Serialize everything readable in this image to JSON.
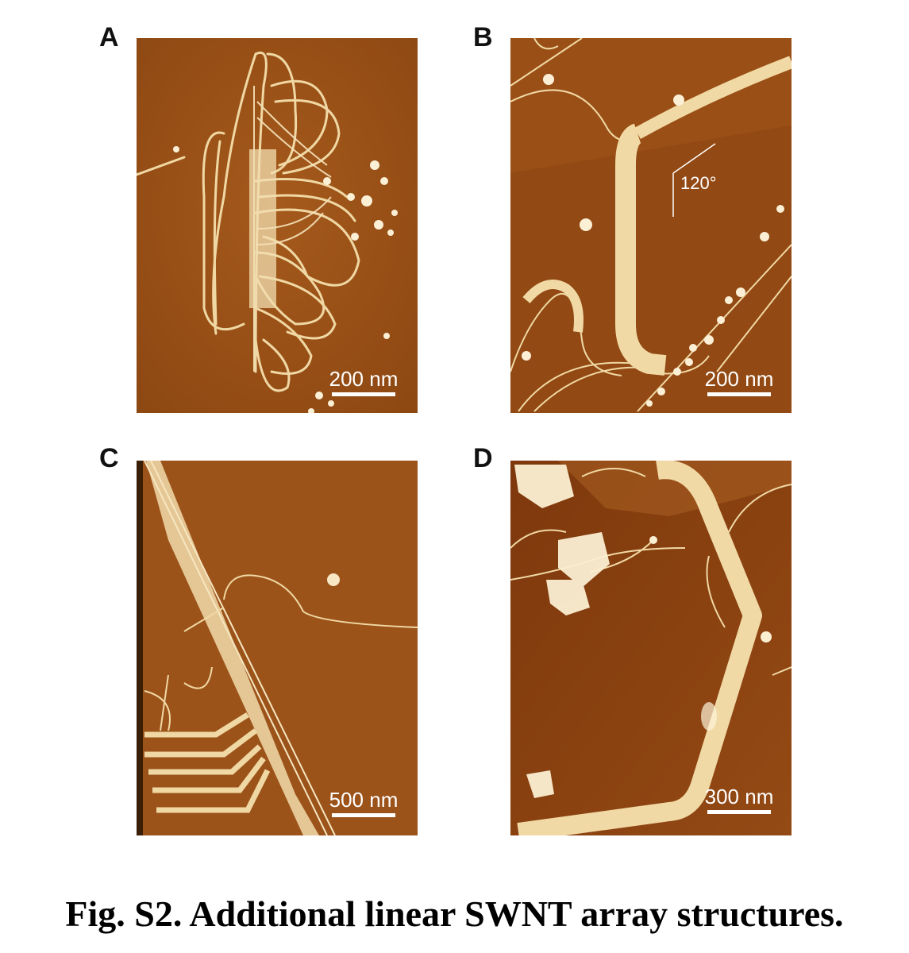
{
  "panels": [
    {
      "label": "A",
      "scale_bar": "200 nm"
    },
    {
      "label": "B",
      "scale_bar": "200 nm",
      "angle_annotation": "120°"
    },
    {
      "label": "C",
      "scale_bar": "500 nm"
    },
    {
      "label": "D",
      "scale_bar": "300 nm"
    }
  ],
  "caption": "Fig. S2. Additional linear SWNT array structures.",
  "colors": {
    "substrate": "#9a4f16",
    "tube": "#f1d9a6",
    "bright": "#fbefd2"
  }
}
